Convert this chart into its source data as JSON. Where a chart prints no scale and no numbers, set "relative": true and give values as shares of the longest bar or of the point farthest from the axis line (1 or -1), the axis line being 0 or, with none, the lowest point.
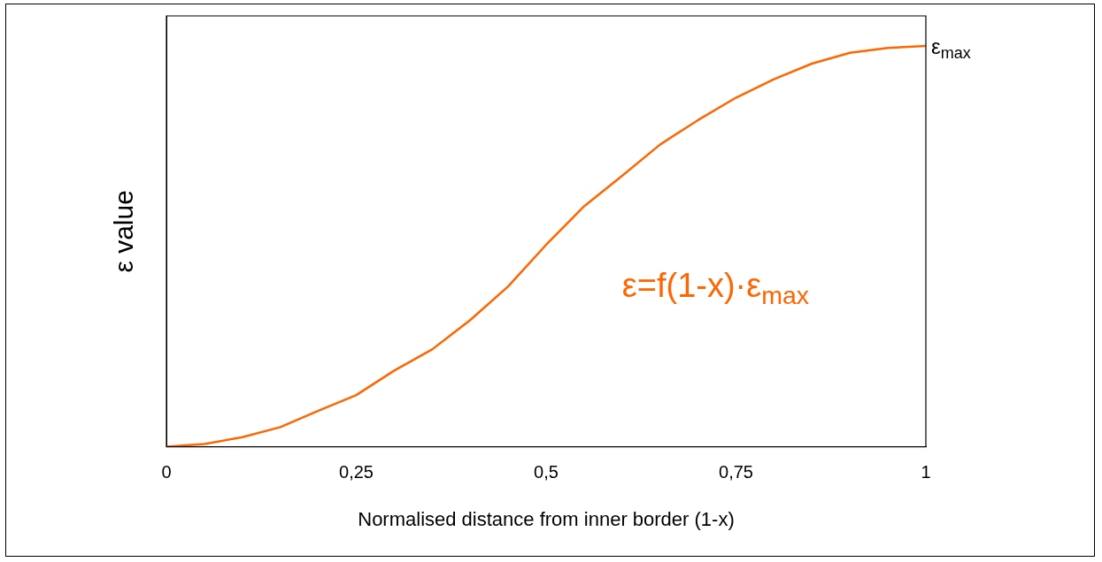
{
  "chart_data": {
    "type": "line",
    "relative": true,
    "xlabel": "Normalised distance from inner border (1-x)",
    "ylabel": "ε value",
    "xlim": [
      0,
      1
    ],
    "xticks": [
      0,
      {
        "value": 0.25,
        "label": "0,25"
      },
      {
        "value": 0.5,
        "label": "0,5"
      },
      {
        "value": 0.75,
        "label": "0,75"
      },
      1
    ],
    "grid": false,
    "legend": false,
    "marker": "none",
    "line_style": "solid",
    "series": [
      {
        "color": "#ff6600",
        "x": [
          0,
          0.05,
          0.1,
          0.15,
          0.2,
          0.25,
          0.3,
          0.35,
          0.4,
          0.45,
          0.5,
          0.55,
          0.6,
          0.65,
          0.7,
          0.75,
          0.8,
          0.85,
          0.9,
          0.95,
          1
        ],
        "values": [
          0,
          0.007,
          0.024,
          0.049,
          0.09,
          0.129,
          0.19,
          0.243,
          0.316,
          0.4,
          0.504,
          0.6,
          0.676,
          0.754,
          0.815,
          0.871,
          0.917,
          0.956,
          0.983,
          0.995,
          1
        ]
      }
    ],
    "annotations": [
      {
        "text": "ε$_{max}$",
        "x": 1,
        "y": 1
      },
      "ε=f(1-x)·ε$_{max}$"
    ]
  }
}
